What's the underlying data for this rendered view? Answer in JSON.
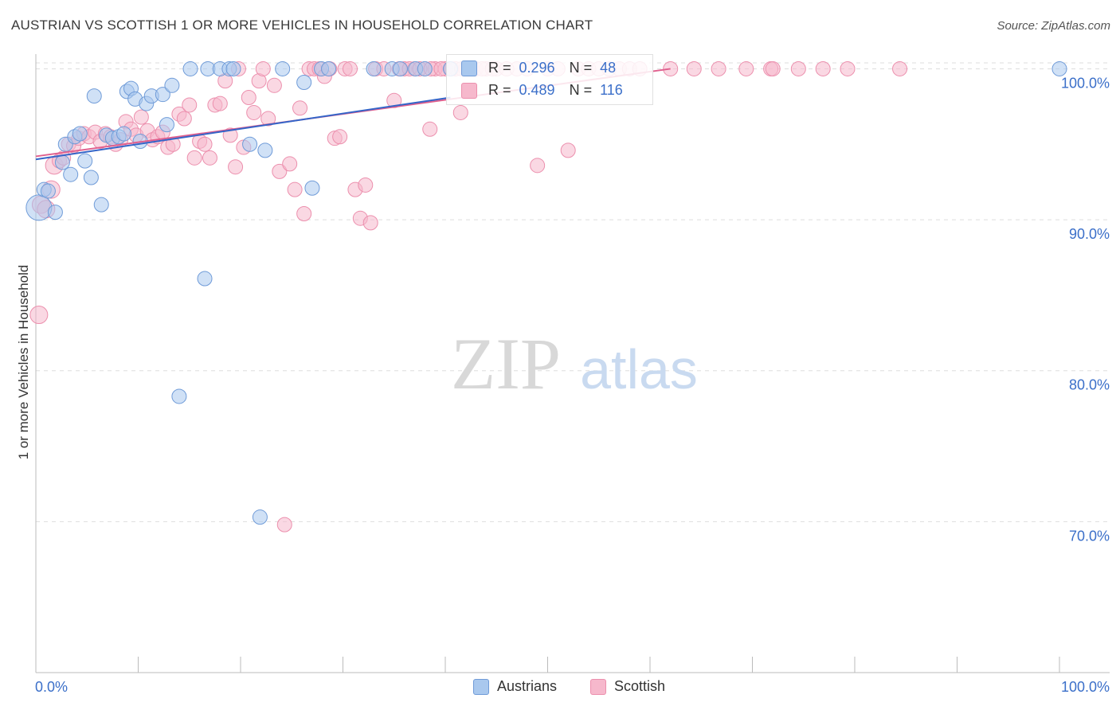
{
  "title": "AUSTRIAN VS SCOTTISH 1 OR MORE VEHICLES IN HOUSEHOLD CORRELATION CHART",
  "source": "Source: ZipAtlas.com",
  "watermark": {
    "zip": "ZIP",
    "atlas": "atlas"
  },
  "stats": {
    "austrians": {
      "r_label": "R =",
      "r": "0.296",
      "n_label": "N =",
      "n": "48"
    },
    "scottish": {
      "r_label": "R =",
      "r": "0.489",
      "n_label": "N =",
      "n": "116"
    }
  },
  "legend": {
    "austrians": "Austrians",
    "scottish": "Scottish"
  },
  "colors": {
    "blue_fill": "#a9c8ee",
    "blue_stroke": "#6f9bd8",
    "blue_line": "#3465c8",
    "pink_fill": "#f6b8cc",
    "pink_stroke": "#ec8fad",
    "pink_line": "#e0608e",
    "tick_text": "#3b6fc9",
    "grid": "#dddddd"
  },
  "chart_data": {
    "type": "scatter",
    "title": "AUSTRIAN VS SCOTTISH 1 OR MORE VEHICLES IN HOUSEHOLD CORRELATION CHART",
    "xlabel": "",
    "ylabel": "1 or more Vehicles in Household",
    "xlim": [
      0,
      100
    ],
    "ylim": [
      60,
      101.5
    ],
    "x_tick_labels": [
      "0.0%",
      "100.0%"
    ],
    "y_ticks": [
      70,
      80,
      90,
      100
    ],
    "y_tick_labels": [
      "70.0%",
      "80.0%",
      "90.0%",
      "100.0%"
    ],
    "series": [
      {
        "name": "Austrians",
        "trend": {
          "x": [
            0,
            40.5
          ],
          "y": [
            94.0,
            98.1
          ]
        },
        "points": [
          {
            "x": 0.3,
            "y": 90.8,
            "s": 16
          },
          {
            "x": 0.8,
            "y": 92.0,
            "s": 9
          },
          {
            "x": 1.2,
            "y": 91.9,
            "s": 9
          },
          {
            "x": 1.9,
            "y": 90.5,
            "s": 9
          },
          {
            "x": 2.6,
            "y": 93.8,
            "s": 9
          },
          {
            "x": 2.9,
            "y": 95.0,
            "s": 9
          },
          {
            "x": 3.4,
            "y": 93.0,
            "s": 9
          },
          {
            "x": 3.8,
            "y": 95.5,
            "s": 9
          },
          {
            "x": 4.3,
            "y": 95.7,
            "s": 9
          },
          {
            "x": 4.8,
            "y": 93.9,
            "s": 9
          },
          {
            "x": 5.4,
            "y": 92.8,
            "s": 9
          },
          {
            "x": 5.7,
            "y": 98.2,
            "s": 9
          },
          {
            "x": 6.4,
            "y": 91.0,
            "s": 9
          },
          {
            "x": 6.9,
            "y": 95.6,
            "s": 9
          },
          {
            "x": 7.5,
            "y": 95.4,
            "s": 9
          },
          {
            "x": 8.1,
            "y": 95.5,
            "s": 9
          },
          {
            "x": 8.6,
            "y": 95.7,
            "s": 9
          },
          {
            "x": 8.9,
            "y": 98.5,
            "s": 9
          },
          {
            "x": 9.3,
            "y": 98.7,
            "s": 9
          },
          {
            "x": 9.7,
            "y": 98.0,
            "s": 9
          },
          {
            "x": 10.2,
            "y": 95.2,
            "s": 9
          },
          {
            "x": 10.8,
            "y": 97.7,
            "s": 9
          },
          {
            "x": 11.3,
            "y": 98.2,
            "s": 9
          },
          {
            "x": 12.4,
            "y": 98.3,
            "s": 9
          },
          {
            "x": 12.8,
            "y": 96.3,
            "s": 9
          },
          {
            "x": 13.3,
            "y": 98.9,
            "s": 9
          },
          {
            "x": 14.0,
            "y": 78.3,
            "s": 9
          },
          {
            "x": 15.1,
            "y": 100.0,
            "s": 9
          },
          {
            "x": 16.5,
            "y": 86.1,
            "s": 9
          },
          {
            "x": 16.8,
            "y": 100.0,
            "s": 9
          },
          {
            "x": 18.0,
            "y": 100.0,
            "s": 9
          },
          {
            "x": 18.9,
            "y": 100.0,
            "s": 9
          },
          {
            "x": 19.3,
            "y": 100.0,
            "s": 9
          },
          {
            "x": 20.9,
            "y": 95.0,
            "s": 9
          },
          {
            "x": 21.9,
            "y": 70.3,
            "s": 9
          },
          {
            "x": 22.4,
            "y": 94.6,
            "s": 9
          },
          {
            "x": 24.1,
            "y": 100.0,
            "s": 9
          },
          {
            "x": 26.2,
            "y": 99.1,
            "s": 9
          },
          {
            "x": 27.0,
            "y": 92.1,
            "s": 9
          },
          {
            "x": 27.9,
            "y": 100.0,
            "s": 9
          },
          {
            "x": 28.6,
            "y": 100.0,
            "s": 9
          },
          {
            "x": 33.0,
            "y": 100.0,
            "s": 9
          },
          {
            "x": 34.8,
            "y": 100.0,
            "s": 9
          },
          {
            "x": 35.6,
            "y": 100.0,
            "s": 9
          },
          {
            "x": 37.1,
            "y": 100.0,
            "s": 9
          },
          {
            "x": 38.0,
            "y": 100.0,
            "s": 9
          },
          {
            "x": 40.5,
            "y": 100.0,
            "s": 9
          },
          {
            "x": 100.0,
            "y": 100.0,
            "s": 9
          }
        ]
      },
      {
        "name": "Scottish",
        "trend": {
          "x": [
            0,
            62.0
          ],
          "y": [
            94.2,
            100.0
          ]
        },
        "points": [
          {
            "x": 0.3,
            "y": 83.7,
            "s": 11
          },
          {
            "x": 0.5,
            "y": 91.0,
            "s": 11
          },
          {
            "x": 1.0,
            "y": 90.7,
            "s": 11
          },
          {
            "x": 1.5,
            "y": 92.0,
            "s": 11
          },
          {
            "x": 1.8,
            "y": 93.6,
            "s": 11
          },
          {
            "x": 2.3,
            "y": 93.9,
            "s": 9
          },
          {
            "x": 2.7,
            "y": 94.1,
            "s": 9
          },
          {
            "x": 3.2,
            "y": 95.0,
            "s": 9
          },
          {
            "x": 3.7,
            "y": 94.9,
            "s": 9
          },
          {
            "x": 4.2,
            "y": 95.4,
            "s": 9
          },
          {
            "x": 4.7,
            "y": 95.7,
            "s": 9
          },
          {
            "x": 5.2,
            "y": 95.5,
            "s": 9
          },
          {
            "x": 5.8,
            "y": 95.8,
            "s": 9
          },
          {
            "x": 6.3,
            "y": 95.2,
            "s": 9
          },
          {
            "x": 6.8,
            "y": 95.7,
            "s": 9
          },
          {
            "x": 7.3,
            "y": 95.5,
            "s": 9
          },
          {
            "x": 7.8,
            "y": 95.0,
            "s": 9
          },
          {
            "x": 8.3,
            "y": 95.3,
            "s": 9
          },
          {
            "x": 8.8,
            "y": 96.5,
            "s": 9
          },
          {
            "x": 9.3,
            "y": 96.0,
            "s": 9
          },
          {
            "x": 9.8,
            "y": 95.6,
            "s": 9
          },
          {
            "x": 10.3,
            "y": 96.8,
            "s": 9
          },
          {
            "x": 10.9,
            "y": 95.9,
            "s": 9
          },
          {
            "x": 11.4,
            "y": 95.3,
            "s": 9
          },
          {
            "x": 11.9,
            "y": 95.5,
            "s": 9
          },
          {
            "x": 12.4,
            "y": 95.8,
            "s": 9
          },
          {
            "x": 12.9,
            "y": 94.8,
            "s": 9
          },
          {
            "x": 13.4,
            "y": 95.0,
            "s": 9
          },
          {
            "x": 14.0,
            "y": 97.0,
            "s": 9
          },
          {
            "x": 14.5,
            "y": 96.7,
            "s": 9
          },
          {
            "x": 15.0,
            "y": 97.6,
            "s": 9
          },
          {
            "x": 15.5,
            "y": 94.1,
            "s": 9
          },
          {
            "x": 16.0,
            "y": 95.2,
            "s": 9
          },
          {
            "x": 16.5,
            "y": 95.0,
            "s": 9
          },
          {
            "x": 17.0,
            "y": 94.1,
            "s": 9
          },
          {
            "x": 17.5,
            "y": 97.6,
            "s": 9
          },
          {
            "x": 18.0,
            "y": 97.7,
            "s": 9
          },
          {
            "x": 18.5,
            "y": 99.2,
            "s": 9
          },
          {
            "x": 19.0,
            "y": 95.6,
            "s": 9
          },
          {
            "x": 19.5,
            "y": 93.5,
            "s": 9
          },
          {
            "x": 19.8,
            "y": 100.0,
            "s": 9
          },
          {
            "x": 20.3,
            "y": 94.8,
            "s": 9
          },
          {
            "x": 20.8,
            "y": 98.1,
            "s": 9
          },
          {
            "x": 21.3,
            "y": 97.1,
            "s": 9
          },
          {
            "x": 21.8,
            "y": 99.2,
            "s": 9
          },
          {
            "x": 22.2,
            "y": 100.0,
            "s": 9
          },
          {
            "x": 22.7,
            "y": 96.7,
            "s": 9
          },
          {
            "x": 23.3,
            "y": 98.9,
            "s": 9
          },
          {
            "x": 23.8,
            "y": 93.2,
            "s": 9
          },
          {
            "x": 24.3,
            "y": 69.8,
            "s": 9
          },
          {
            "x": 24.8,
            "y": 93.7,
            "s": 9
          },
          {
            "x": 25.3,
            "y": 92.0,
            "s": 9
          },
          {
            "x": 25.8,
            "y": 97.4,
            "s": 9
          },
          {
            "x": 26.2,
            "y": 90.4,
            "s": 9
          },
          {
            "x": 26.7,
            "y": 100.0,
            "s": 9
          },
          {
            "x": 27.2,
            "y": 100.0,
            "s": 9
          },
          {
            "x": 27.7,
            "y": 100.0,
            "s": 9
          },
          {
            "x": 28.2,
            "y": 99.5,
            "s": 9
          },
          {
            "x": 28.7,
            "y": 100.0,
            "s": 9
          },
          {
            "x": 29.2,
            "y": 95.4,
            "s": 9
          },
          {
            "x": 29.7,
            "y": 95.5,
            "s": 9
          },
          {
            "x": 30.2,
            "y": 100.0,
            "s": 9
          },
          {
            "x": 30.7,
            "y": 100.0,
            "s": 9
          },
          {
            "x": 31.2,
            "y": 92.0,
            "s": 9
          },
          {
            "x": 31.7,
            "y": 90.1,
            "s": 9
          },
          {
            "x": 32.2,
            "y": 92.3,
            "s": 9
          },
          {
            "x": 32.7,
            "y": 89.8,
            "s": 9
          },
          {
            "x": 33.2,
            "y": 100.0,
            "s": 9
          },
          {
            "x": 34.0,
            "y": 100.0,
            "s": 9
          },
          {
            "x": 35.0,
            "y": 97.9,
            "s": 9
          },
          {
            "x": 36.0,
            "y": 100.0,
            "s": 9
          },
          {
            "x": 37.0,
            "y": 100.0,
            "s": 9
          },
          {
            "x": 38.0,
            "y": 100.0,
            "s": 9
          },
          {
            "x": 38.5,
            "y": 96.0,
            "s": 9
          },
          {
            "x": 39.0,
            "y": 100.0,
            "s": 9
          },
          {
            "x": 40.0,
            "y": 100.0,
            "s": 9
          },
          {
            "x": 41.0,
            "y": 100.0,
            "s": 9
          },
          {
            "x": 41.5,
            "y": 97.1,
            "s": 9
          },
          {
            "x": 42.0,
            "y": 100.0,
            "s": 9
          },
          {
            "x": 43.0,
            "y": 100.0,
            "s": 9
          },
          {
            "x": 44.0,
            "y": 100.0,
            "s": 9
          },
          {
            "x": 45.0,
            "y": 100.0,
            "s": 9
          },
          {
            "x": 46.0,
            "y": 100.0,
            "s": 9
          },
          {
            "x": 47.0,
            "y": 100.0,
            "s": 9
          },
          {
            "x": 48.0,
            "y": 100.0,
            "s": 9
          },
          {
            "x": 49.0,
            "y": 93.6,
            "s": 9
          },
          {
            "x": 50.0,
            "y": 100.0,
            "s": 9
          },
          {
            "x": 51.0,
            "y": 100.0,
            "s": 9
          },
          {
            "x": 52.0,
            "y": 94.6,
            "s": 9
          },
          {
            "x": 53.0,
            "y": 100.0,
            "s": 9
          },
          {
            "x": 54.0,
            "y": 100.0,
            "s": 9
          },
          {
            "x": 55.0,
            "y": 100.0,
            "s": 9
          },
          {
            "x": 56.0,
            "y": 100.0,
            "s": 9
          },
          {
            "x": 57.0,
            "y": 100.0,
            "s": 9
          },
          {
            "x": 58.0,
            "y": 100.0,
            "s": 9
          },
          {
            "x": 59.0,
            "y": 100.0,
            "s": 9
          },
          {
            "x": 62.0,
            "y": 100.0,
            "s": 9
          },
          {
            "x": 64.3,
            "y": 100.0,
            "s": 9
          },
          {
            "x": 66.7,
            "y": 100.0,
            "s": 9
          },
          {
            "x": 69.4,
            "y": 100.0,
            "s": 9
          },
          {
            "x": 71.8,
            "y": 100.0,
            "s": 9
          },
          {
            "x": 72.0,
            "y": 100.0,
            "s": 9
          },
          {
            "x": 74.5,
            "y": 100.0,
            "s": 9
          },
          {
            "x": 76.9,
            "y": 100.0,
            "s": 9
          },
          {
            "x": 79.3,
            "y": 100.0,
            "s": 9
          },
          {
            "x": 84.4,
            "y": 100.0,
            "s": 9
          },
          {
            "x": 35.5,
            "y": 100.0,
            "s": 9
          },
          {
            "x": 36.5,
            "y": 100.0,
            "s": 9
          },
          {
            "x": 37.5,
            "y": 100.0,
            "s": 9
          },
          {
            "x": 38.6,
            "y": 100.0,
            "s": 9
          },
          {
            "x": 39.6,
            "y": 100.0,
            "s": 9
          },
          {
            "x": 40.6,
            "y": 100.0,
            "s": 9
          },
          {
            "x": 41.6,
            "y": 100.0,
            "s": 9
          },
          {
            "x": 42.6,
            "y": 100.0,
            "s": 9
          },
          {
            "x": 43.6,
            "y": 100.0,
            "s": 9
          },
          {
            "x": 44.6,
            "y": 100.0,
            "s": 9
          }
        ]
      }
    ]
  }
}
